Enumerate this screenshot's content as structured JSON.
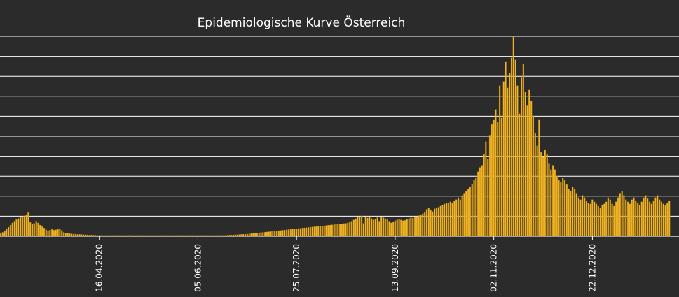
{
  "chart_data": {
    "type": "bar",
    "title": "Epidemiologische Kurve Österreich",
    "xlabel": "",
    "ylabel": "",
    "grid": true,
    "legend": "none",
    "colors": {
      "background": "#2b2b2b",
      "bar": "#f0b323",
      "bar_stroke": "#a87a12",
      "grid": "#ffffff",
      "text": "#ffffff"
    },
    "x_start_date": "2020-02-26",
    "x_tick_labels": [
      "16.04.2020",
      "05.06.2020",
      "25.07.2020",
      "13.09.2020",
      "02.11.2020",
      "22.12.2020"
    ],
    "y_gridline_count": 10,
    "ylim": [
      0,
      9300
    ],
    "values": [
      120,
      180,
      240,
      330,
      420,
      520,
      620,
      700,
      770,
      830,
      870,
      900,
      950,
      1000,
      1100,
      640,
      560,
      600,
      700,
      620,
      520,
      450,
      380,
      300,
      260,
      290,
      320,
      280,
      300,
      320,
      330,
      270,
      180,
      150,
      130,
      120,
      110,
      100,
      95,
      90,
      85,
      80,
      75,
      70,
      65,
      60,
      55,
      50,
      50,
      45,
      45,
      40,
      40,
      40,
      40,
      40,
      40,
      40,
      40,
      40,
      40,
      40,
      40,
      40,
      40,
      40,
      40,
      40,
      40,
      40,
      40,
      40,
      40,
      40,
      40,
      40,
      40,
      40,
      40,
      40,
      40,
      40,
      40,
      40,
      40,
      40,
      40,
      40,
      40,
      40,
      40,
      40,
      40,
      40,
      40,
      40,
      40,
      40,
      40,
      40,
      40,
      40,
      40,
      40,
      40,
      40,
      40,
      40,
      40,
      40,
      40,
      40,
      40,
      40,
      45,
      50,
      55,
      60,
      65,
      70,
      75,
      80,
      85,
      90,
      95,
      100,
      110,
      120,
      130,
      140,
      150,
      160,
      170,
      180,
      190,
      200,
      210,
      220,
      230,
      240,
      250,
      260,
      270,
      280,
      290,
      300,
      310,
      320,
      330,
      340,
      350,
      360,
      370,
      380,
      390,
      400,
      410,
      420,
      430,
      440,
      450,
      460,
      470,
      480,
      490,
      500,
      510,
      520,
      530,
      540,
      550,
      560,
      570,
      580,
      590,
      600,
      620,
      650,
      700,
      760,
      820,
      880,
      900,
      950,
      600,
      900,
      850,
      900,
      820,
      760,
      800,
      860,
      700,
      900,
      860,
      820,
      780,
      700,
      620,
      680,
      720,
      760,
      800,
      760,
      720,
      740,
      780,
      820,
      860,
      840,
      880,
      900,
      960,
      1000,
      1050,
      1100,
      1250,
      1300,
      1200,
      1150,
      1280,
      1320,
      1350,
      1400,
      1450,
      1500,
      1550,
      1550,
      1600,
      1550,
      1650,
      1700,
      1800,
      1700,
      1900,
      2000,
      2100,
      2200,
      2300,
      2400,
      2600,
      2700,
      3000,
      3200,
      3300,
      3800,
      4400,
      3600,
      4700,
      5200,
      5400,
      5900,
      5300,
      7000,
      5500,
      7200,
      8100,
      6900,
      7600,
      8300,
      9300,
      8200,
      7000,
      5700,
      7400,
      8000,
      6700,
      6100,
      6800,
      6300,
      5600,
      4800,
      4200,
      5400,
      3900,
      3700,
      4000,
      3800,
      3400,
      3100,
      3300,
      3100,
      2800,
      2600,
      2500,
      2700,
      2600,
      2400,
      2200,
      2100,
      2300,
      2200,
      2000,
      1800,
      1700,
      1900,
      1800,
      1650,
      1550,
      1500,
      1700,
      1600,
      1500,
      1400,
      1300,
      1450,
      1500,
      1600,
      1800,
      1700,
      1500,
      1400,
      1600,
      1800,
      2000,
      2100,
      1900,
      1700,
      1600,
      1500,
      1700,
      1800,
      1650,
      1550,
      1450,
      1600,
      1800,
      1900,
      1750,
      1600,
      1500,
      1650,
      1800,
      1900,
      1700,
      1600,
      1500,
      1450,
      1550,
      1650
    ]
  }
}
